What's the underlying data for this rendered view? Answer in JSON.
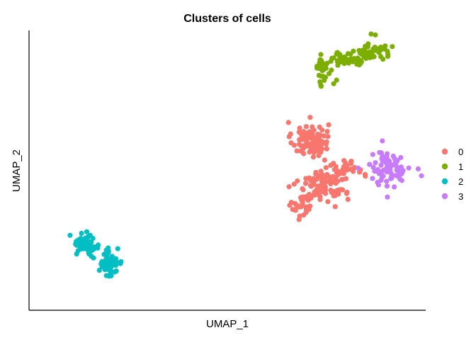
{
  "chart_data": {
    "type": "scatter",
    "title": "Clusters of cells",
    "xlabel": "UMAP_1",
    "ylabel": "UMAP_2",
    "xlim": [
      -1.0,
      10.0
    ],
    "ylim": [
      -0.7,
      10.3
    ],
    "grid": false,
    "show_ticks": false,
    "legend": {
      "position": "right"
    },
    "series": [
      {
        "name": "0",
        "color": "#F8766D",
        "clusters": [
          {
            "cx": 6.8,
            "cy": 6.0,
            "sx": 0.25,
            "sy": 0.35,
            "n": 95
          },
          {
            "cx": 7.2,
            "cy": 4.3,
            "sx": 0.35,
            "sy": 0.35,
            "n": 110
          },
          {
            "cx": 6.6,
            "cy": 3.4,
            "sx": 0.15,
            "sy": 0.25,
            "n": 30
          },
          {
            "cx": 7.8,
            "cy": 4.9,
            "sx": 0.25,
            "sy": 0.15,
            "n": 25
          }
        ]
      },
      {
        "name": "1",
        "color": "#7CAE00",
        "clusters": [
          {
            "cx": 7.2,
            "cy": 8.6,
            "sx": 0.15,
            "sy": 0.25,
            "n": 25
          },
          {
            "cx": 7.7,
            "cy": 9.2,
            "sx": 0.25,
            "sy": 0.2,
            "n": 40
          },
          {
            "cx": 8.3,
            "cy": 9.3,
            "sx": 0.2,
            "sy": 0.2,
            "n": 35
          },
          {
            "cx": 8.7,
            "cy": 9.6,
            "sx": 0.2,
            "sy": 0.2,
            "n": 25
          }
        ]
      },
      {
        "name": "2",
        "color": "#00BFC4",
        "clusters": [
          {
            "cx": 0.6,
            "cy": 1.9,
            "sx": 0.18,
            "sy": 0.22,
            "n": 45
          },
          {
            "cx": 1.2,
            "cy": 1.2,
            "sx": 0.2,
            "sy": 0.3,
            "n": 65
          }
        ]
      },
      {
        "name": "3",
        "color": "#C77CFF",
        "clusters": [
          {
            "cx": 9.0,
            "cy": 4.9,
            "sx": 0.3,
            "sy": 0.35,
            "n": 80
          }
        ]
      }
    ]
  }
}
